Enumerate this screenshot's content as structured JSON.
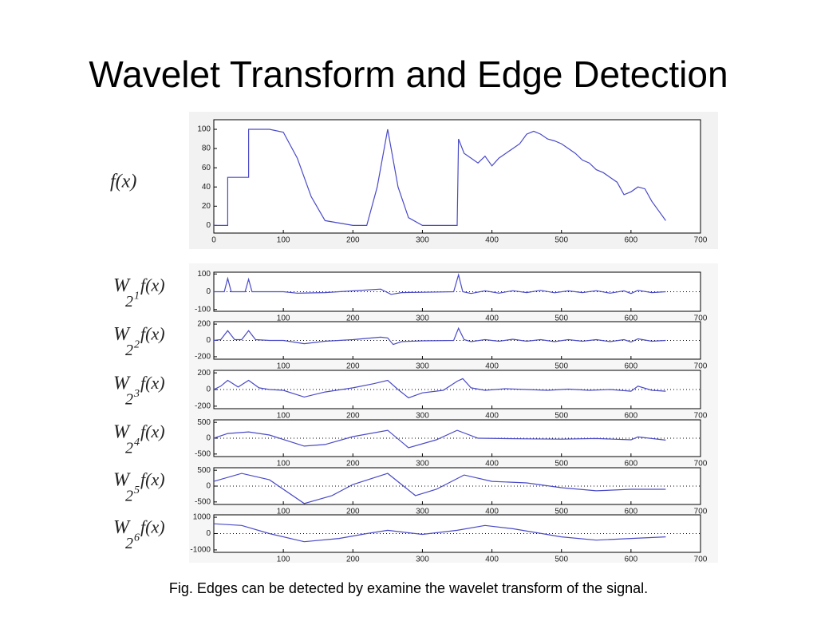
{
  "title": "Wavelet Transform and Edge Detection",
  "caption": "Fig. Edges can be detected by examine the wavelet transform of the signal.",
  "chart_data": [
    {
      "type": "line",
      "ylabel": "f(x)",
      "color": "#4a4ac8",
      "x": [
        0,
        20,
        20,
        50,
        50,
        80,
        100,
        120,
        140,
        160,
        200,
        220,
        235,
        250,
        265,
        280,
        300,
        350,
        352,
        360,
        370,
        380,
        390,
        400,
        410,
        420,
        430,
        440,
        450,
        460,
        470,
        480,
        490,
        500,
        510,
        520,
        530,
        540,
        550,
        560,
        570,
        580,
        590,
        600,
        610,
        620,
        630,
        640,
        650
      ],
      "values": [
        0,
        0,
        50,
        50,
        100,
        100,
        97,
        70,
        30,
        5,
        0,
        0,
        40,
        100,
        40,
        8,
        0,
        0,
        90,
        75,
        70,
        65,
        72,
        62,
        70,
        75,
        80,
        85,
        95,
        98,
        95,
        90,
        88,
        85,
        80,
        75,
        68,
        65,
        58,
        55,
        50,
        45,
        32,
        35,
        40,
        38,
        25,
        15,
        5
      ],
      "xlim": [
        0,
        700
      ],
      "xticks": [
        0,
        100,
        200,
        300,
        400,
        500,
        600,
        700
      ],
      "ylim": [
        -8,
        110
      ],
      "yticks": [
        0,
        20,
        40,
        60,
        80,
        100
      ]
    },
    {
      "type": "line",
      "ylabel": [
        "W",
        "2",
        "1",
        "f(x)"
      ],
      "color": "#4a4ac8",
      "x": [
        0,
        15,
        20,
        25,
        45,
        50,
        55,
        100,
        120,
        160,
        200,
        240,
        255,
        270,
        300,
        345,
        352,
        358,
        370,
        390,
        410,
        430,
        450,
        470,
        490,
        510,
        530,
        550,
        570,
        590,
        600,
        610,
        630,
        650
      ],
      "values": [
        0,
        0,
        75,
        0,
        0,
        70,
        0,
        0,
        -8,
        -5,
        5,
        15,
        -15,
        -5,
        -3,
        0,
        95,
        0,
        -10,
        5,
        -8,
        6,
        -5,
        8,
        -6,
        5,
        -5,
        6,
        -8,
        5,
        -10,
        8,
        -5,
        0
      ],
      "xlim": [
        0,
        700
      ],
      "xticks": [
        100,
        200,
        300,
        400,
        500,
        600,
        700
      ],
      "ylim": [
        -110,
        110
      ],
      "yticks": [
        -100,
        0,
        100
      ]
    },
    {
      "type": "line",
      "ylabel": [
        "W",
        "2",
        "2",
        "f(x)"
      ],
      "color": "#4a4ac8",
      "x": [
        0,
        10,
        20,
        30,
        40,
        50,
        60,
        80,
        100,
        130,
        160,
        200,
        240,
        250,
        258,
        270,
        300,
        345,
        352,
        360,
        370,
        390,
        410,
        430,
        450,
        470,
        490,
        510,
        530,
        550,
        570,
        590,
        600,
        610,
        630,
        650
      ],
      "values": [
        0,
        10,
        120,
        10,
        10,
        120,
        10,
        0,
        0,
        -40,
        -10,
        10,
        40,
        30,
        -50,
        -15,
        -5,
        0,
        150,
        10,
        -15,
        10,
        -10,
        15,
        -10,
        10,
        -15,
        10,
        -10,
        10,
        -15,
        10,
        -20,
        20,
        -10,
        0
      ],
      "xlim": [
        0,
        700
      ],
      "xticks": [
        100,
        200,
        300,
        400,
        500,
        600,
        700
      ],
      "ylim": [
        -230,
        230
      ],
      "yticks": [
        -200,
        0,
        200
      ]
    },
    {
      "type": "line",
      "ylabel": [
        "W",
        "2",
        "3",
        "f(x)"
      ],
      "color": "#4a4ac8",
      "x": [
        0,
        10,
        20,
        35,
        50,
        65,
        80,
        100,
        130,
        160,
        200,
        230,
        250,
        265,
        280,
        300,
        330,
        350,
        358,
        370,
        390,
        420,
        450,
        480,
        510,
        540,
        570,
        600,
        610,
        630,
        650
      ],
      "values": [
        0,
        40,
        110,
        30,
        110,
        20,
        0,
        -10,
        -90,
        -30,
        20,
        70,
        110,
        0,
        -100,
        -40,
        -10,
        100,
        130,
        20,
        -10,
        10,
        0,
        -10,
        5,
        -10,
        0,
        -20,
        40,
        -10,
        -20
      ],
      "xlim": [
        0,
        700
      ],
      "xticks": [
        100,
        200,
        300,
        400,
        500,
        600,
        700
      ],
      "ylim": [
        -230,
        230
      ],
      "yticks": [
        -200,
        0,
        200
      ]
    },
    {
      "type": "line",
      "ylabel": [
        "W",
        "2",
        "4",
        "f(x)"
      ],
      "color": "#4a4ac8",
      "x": [
        0,
        20,
        50,
        80,
        130,
        160,
        200,
        250,
        280,
        320,
        350,
        380,
        450,
        500,
        550,
        600,
        610,
        650
      ],
      "values": [
        0,
        150,
        200,
        100,
        -250,
        -200,
        50,
        250,
        -300,
        -50,
        250,
        0,
        -20,
        -30,
        -10,
        -50,
        40,
        -60
      ],
      "xlim": [
        0,
        700
      ],
      "xticks": [
        100,
        200,
        300,
        400,
        500,
        600,
        700
      ],
      "ylim": [
        -580,
        580
      ],
      "yticks": [
        -500,
        0,
        500
      ]
    },
    {
      "type": "line",
      "ylabel": [
        "W",
        "2",
        "5",
        "f(x)"
      ],
      "color": "#4a4ac8",
      "x": [
        0,
        40,
        80,
        130,
        170,
        200,
        250,
        290,
        320,
        360,
        400,
        450,
        500,
        550,
        600,
        650
      ],
      "values": [
        150,
        400,
        200,
        -550,
        -300,
        50,
        400,
        -300,
        -100,
        350,
        150,
        100,
        -50,
        -150,
        -100,
        -100
      ],
      "xlim": [
        0,
        700
      ],
      "xticks": [
        100,
        200,
        300,
        400,
        500,
        600,
        700
      ],
      "ylim": [
        -580,
        580
      ],
      "yticks": [
        -500,
        0,
        500
      ]
    },
    {
      "type": "line",
      "ylabel": [
        "W",
        "2",
        "6",
        "f(x)"
      ],
      "color": "#4a4ac8",
      "x": [
        0,
        40,
        80,
        130,
        180,
        220,
        250,
        300,
        350,
        390,
        430,
        500,
        550,
        600,
        650
      ],
      "values": [
        600,
        500,
        0,
        -500,
        -300,
        0,
        200,
        -50,
        200,
        500,
        300,
        -200,
        -400,
        -300,
        -200
      ],
      "xlim": [
        0,
        700
      ],
      "xticks": [
        100,
        200,
        300,
        400,
        500,
        600,
        700
      ],
      "ylim": [
        -1150,
        1150
      ],
      "yticks": [
        -1000,
        0,
        1000
      ]
    }
  ]
}
